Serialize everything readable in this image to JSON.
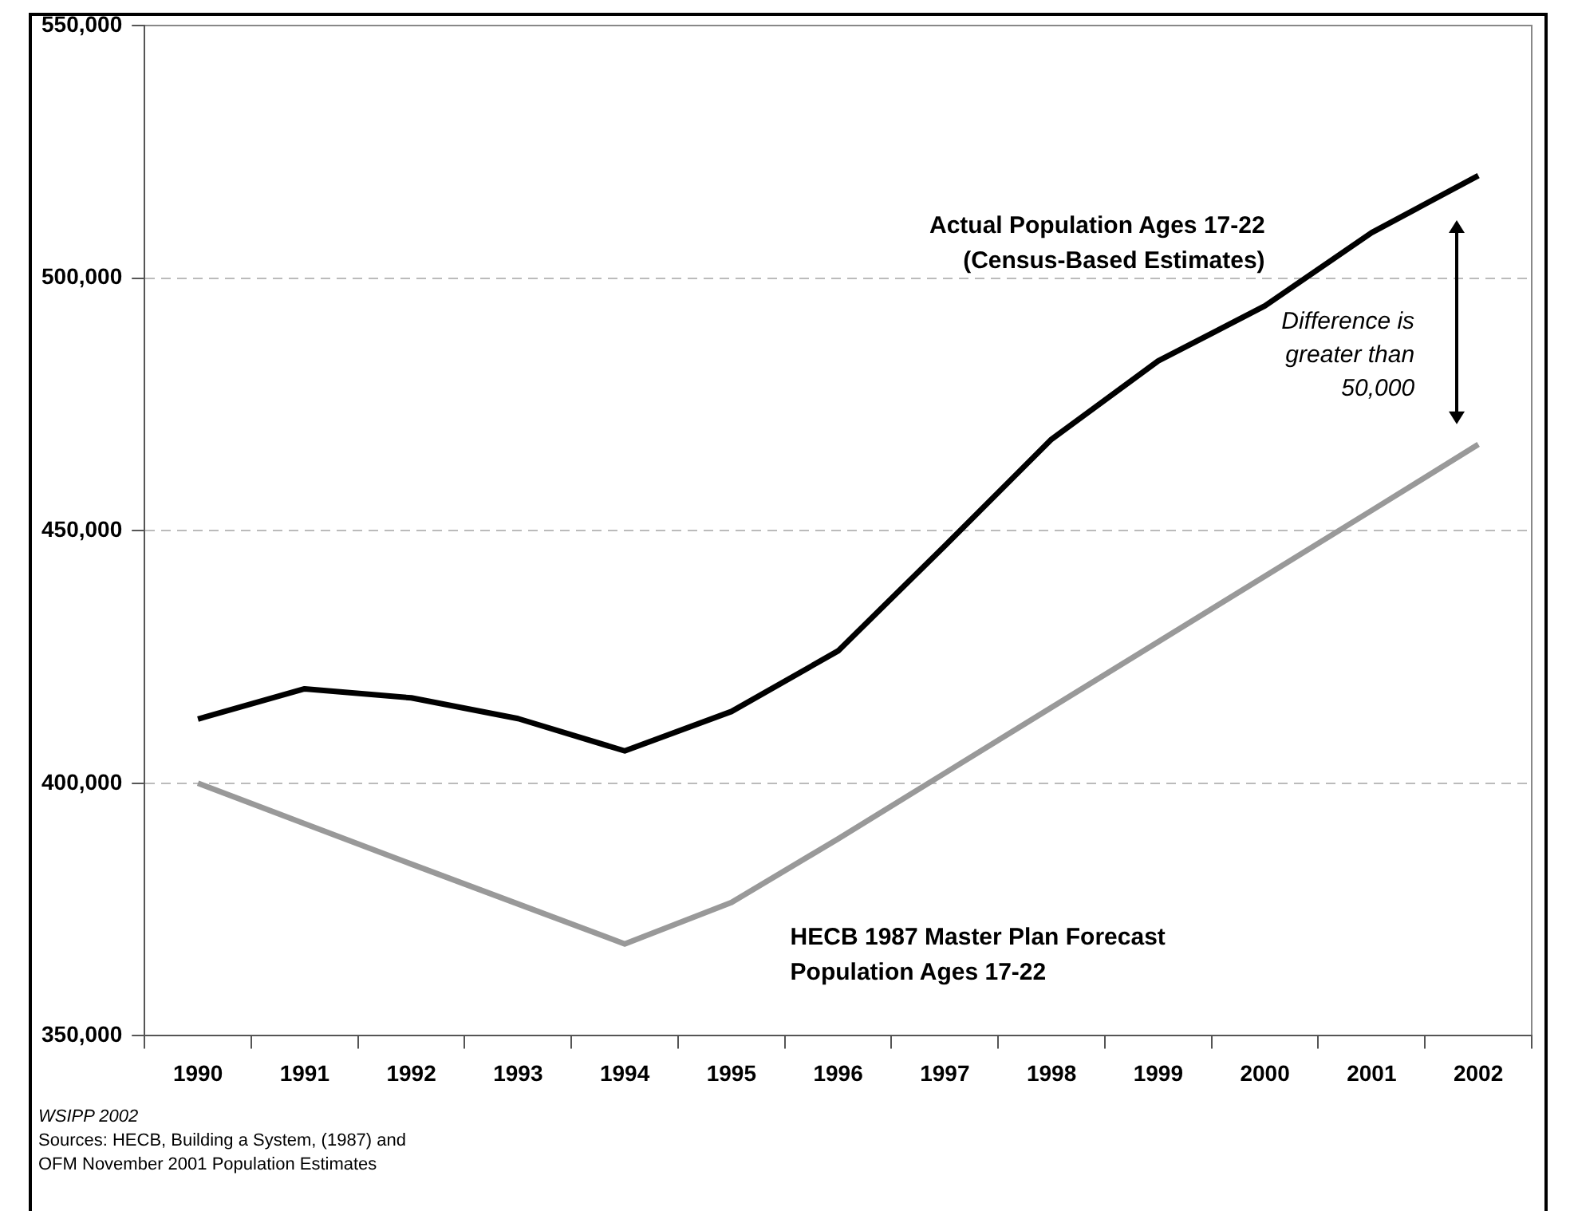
{
  "chart_data": {
    "type": "line",
    "categories": [
      "1990",
      "1991",
      "1992",
      "1993",
      "1994",
      "1995",
      "1996",
      "1997",
      "1998",
      "1999",
      "2000",
      "2001",
      "2002"
    ],
    "series": [
      {
        "name": "Actual Population Ages 17-22 (Census-Based Estimates)",
        "color": "#000000",
        "values": [
          412700,
          418700,
          416900,
          412800,
          406400,
          414200,
          426200,
          447000,
          468100,
          483600,
          494500,
          509000,
          520300
        ]
      },
      {
        "name": "HECB 1987 Master Plan Forecast Population Ages 17-22",
        "color": "#999999",
        "values": [
          400000,
          392000,
          384000,
          376100,
          368200,
          376400,
          389000,
          402000,
          415000,
          428000,
          441000,
          454000,
          467100
        ]
      }
    ],
    "ylim": [
      350000,
      550000
    ],
    "yticks": [
      {
        "value": 350000,
        "label": "350,000"
      },
      {
        "value": 400000,
        "label": "400,000"
      },
      {
        "value": 450000,
        "label": "450,000"
      },
      {
        "value": 500000,
        "label": "500,000"
      },
      {
        "value": 550000,
        "label": "550,000"
      }
    ],
    "grid": "y",
    "legend": false,
    "marker": "none",
    "line_style": "solid",
    "annotations": [
      "Difference is greater than 50,000",
      "WSIPP 2002",
      "Sources:  HECB, Building a System, (1987) and OFM November 2001 Population Estimates"
    ]
  }
}
